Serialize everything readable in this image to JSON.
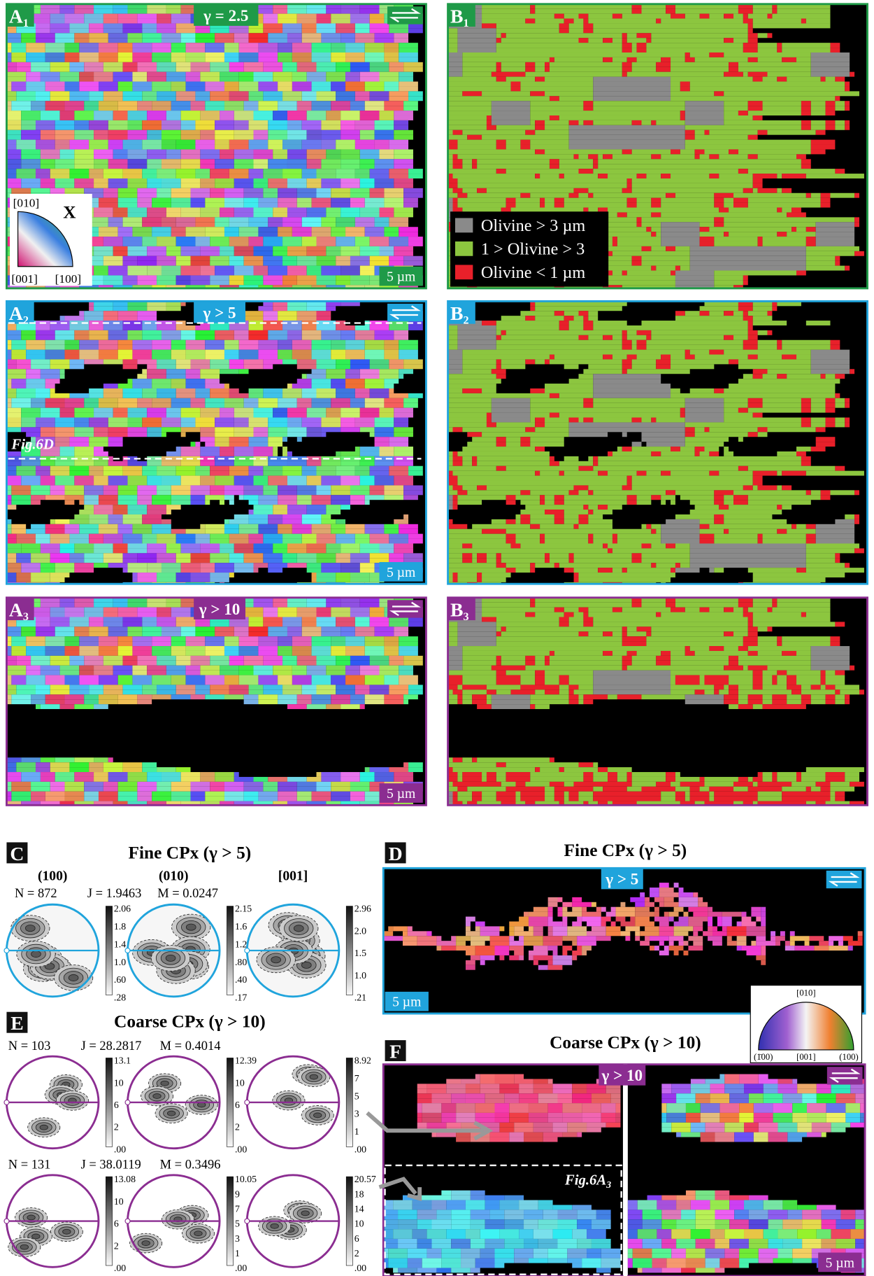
{
  "panels": {
    "A1": {
      "label": "A",
      "sub": "1",
      "gamma": "γ = 2.5",
      "scale": "5 µm",
      "legend": {
        "top": "[010]",
        "axis": "X",
        "left": "[001]",
        "right": "[100]"
      }
    },
    "B1": {
      "label": "B",
      "sub": "1",
      "legend": [
        "Olivine > 3 µm",
        "1 > Olivine > 3",
        "Olivine < 1 µm"
      ]
    },
    "A2": {
      "label": "A",
      "sub": "2",
      "gamma": "γ > 5",
      "scale": "5 µm",
      "ref": "Fig.6D"
    },
    "B2": {
      "label": "B",
      "sub": "2"
    },
    "A3": {
      "label": "A",
      "sub": "3",
      "gamma": "γ > 10",
      "scale": "5 µm"
    },
    "B3": {
      "label": "B",
      "sub": "3"
    },
    "C": {
      "label": "C",
      "title": "Fine CPx (γ > 5)",
      "headers": [
        "(100)",
        "(010)",
        "[001]"
      ],
      "stats": [
        "N = 872",
        "J = 1.9463",
        "M = 0.0247"
      ],
      "scales": [
        [
          "2.06",
          "1.8",
          "1.4",
          "1.0",
          ".60",
          ".28"
        ],
        [
          "2.15",
          "1.6",
          "1.2",
          ".80",
          ".40",
          ".17"
        ],
        [
          "2.96",
          "2.0",
          "1.5",
          "1.0",
          ".21"
        ]
      ]
    },
    "D": {
      "label": "D",
      "title": "Fine CPx (γ > 5)",
      "gamma": "γ > 5",
      "scale": "5 µm",
      "legend": {
        "top": "[010]",
        "left": "(1̄00)",
        "mid": "[001]",
        "right": "(100)"
      }
    },
    "E": {
      "label": "E",
      "title": "Coarse CPx (γ > 10)",
      "rows": [
        {
          "stats": [
            "N = 103",
            "J = 28.2817",
            "M = 0.4014"
          ],
          "scales": [
            [
              "13.1",
              "10",
              "6",
              "2",
              ".00"
            ],
            [
              "12.39",
              "10",
              "6",
              "2",
              ".00"
            ],
            [
              "8.92",
              "7",
              "5",
              "3",
              "1",
              ".00"
            ]
          ]
        },
        {
          "stats": [
            "N = 131",
            "J = 38.0119",
            "M = 0.3496"
          ],
          "scales": [
            [
              "13.08",
              "10",
              "6",
              "2",
              ".00"
            ],
            [
              "10.05",
              "9",
              "7",
              "5",
              "3",
              "1",
              ".00"
            ],
            [
              "20.57",
              "18",
              "14",
              "10",
              "6",
              "2",
              ".00"
            ]
          ]
        }
      ]
    },
    "F": {
      "label": "F",
      "title": "Coarse CPx (γ > 10)",
      "gamma": "γ > 10",
      "ref": "Fig.6A",
      "ref_sub": "3",
      "scale": "5 µm"
    }
  }
}
